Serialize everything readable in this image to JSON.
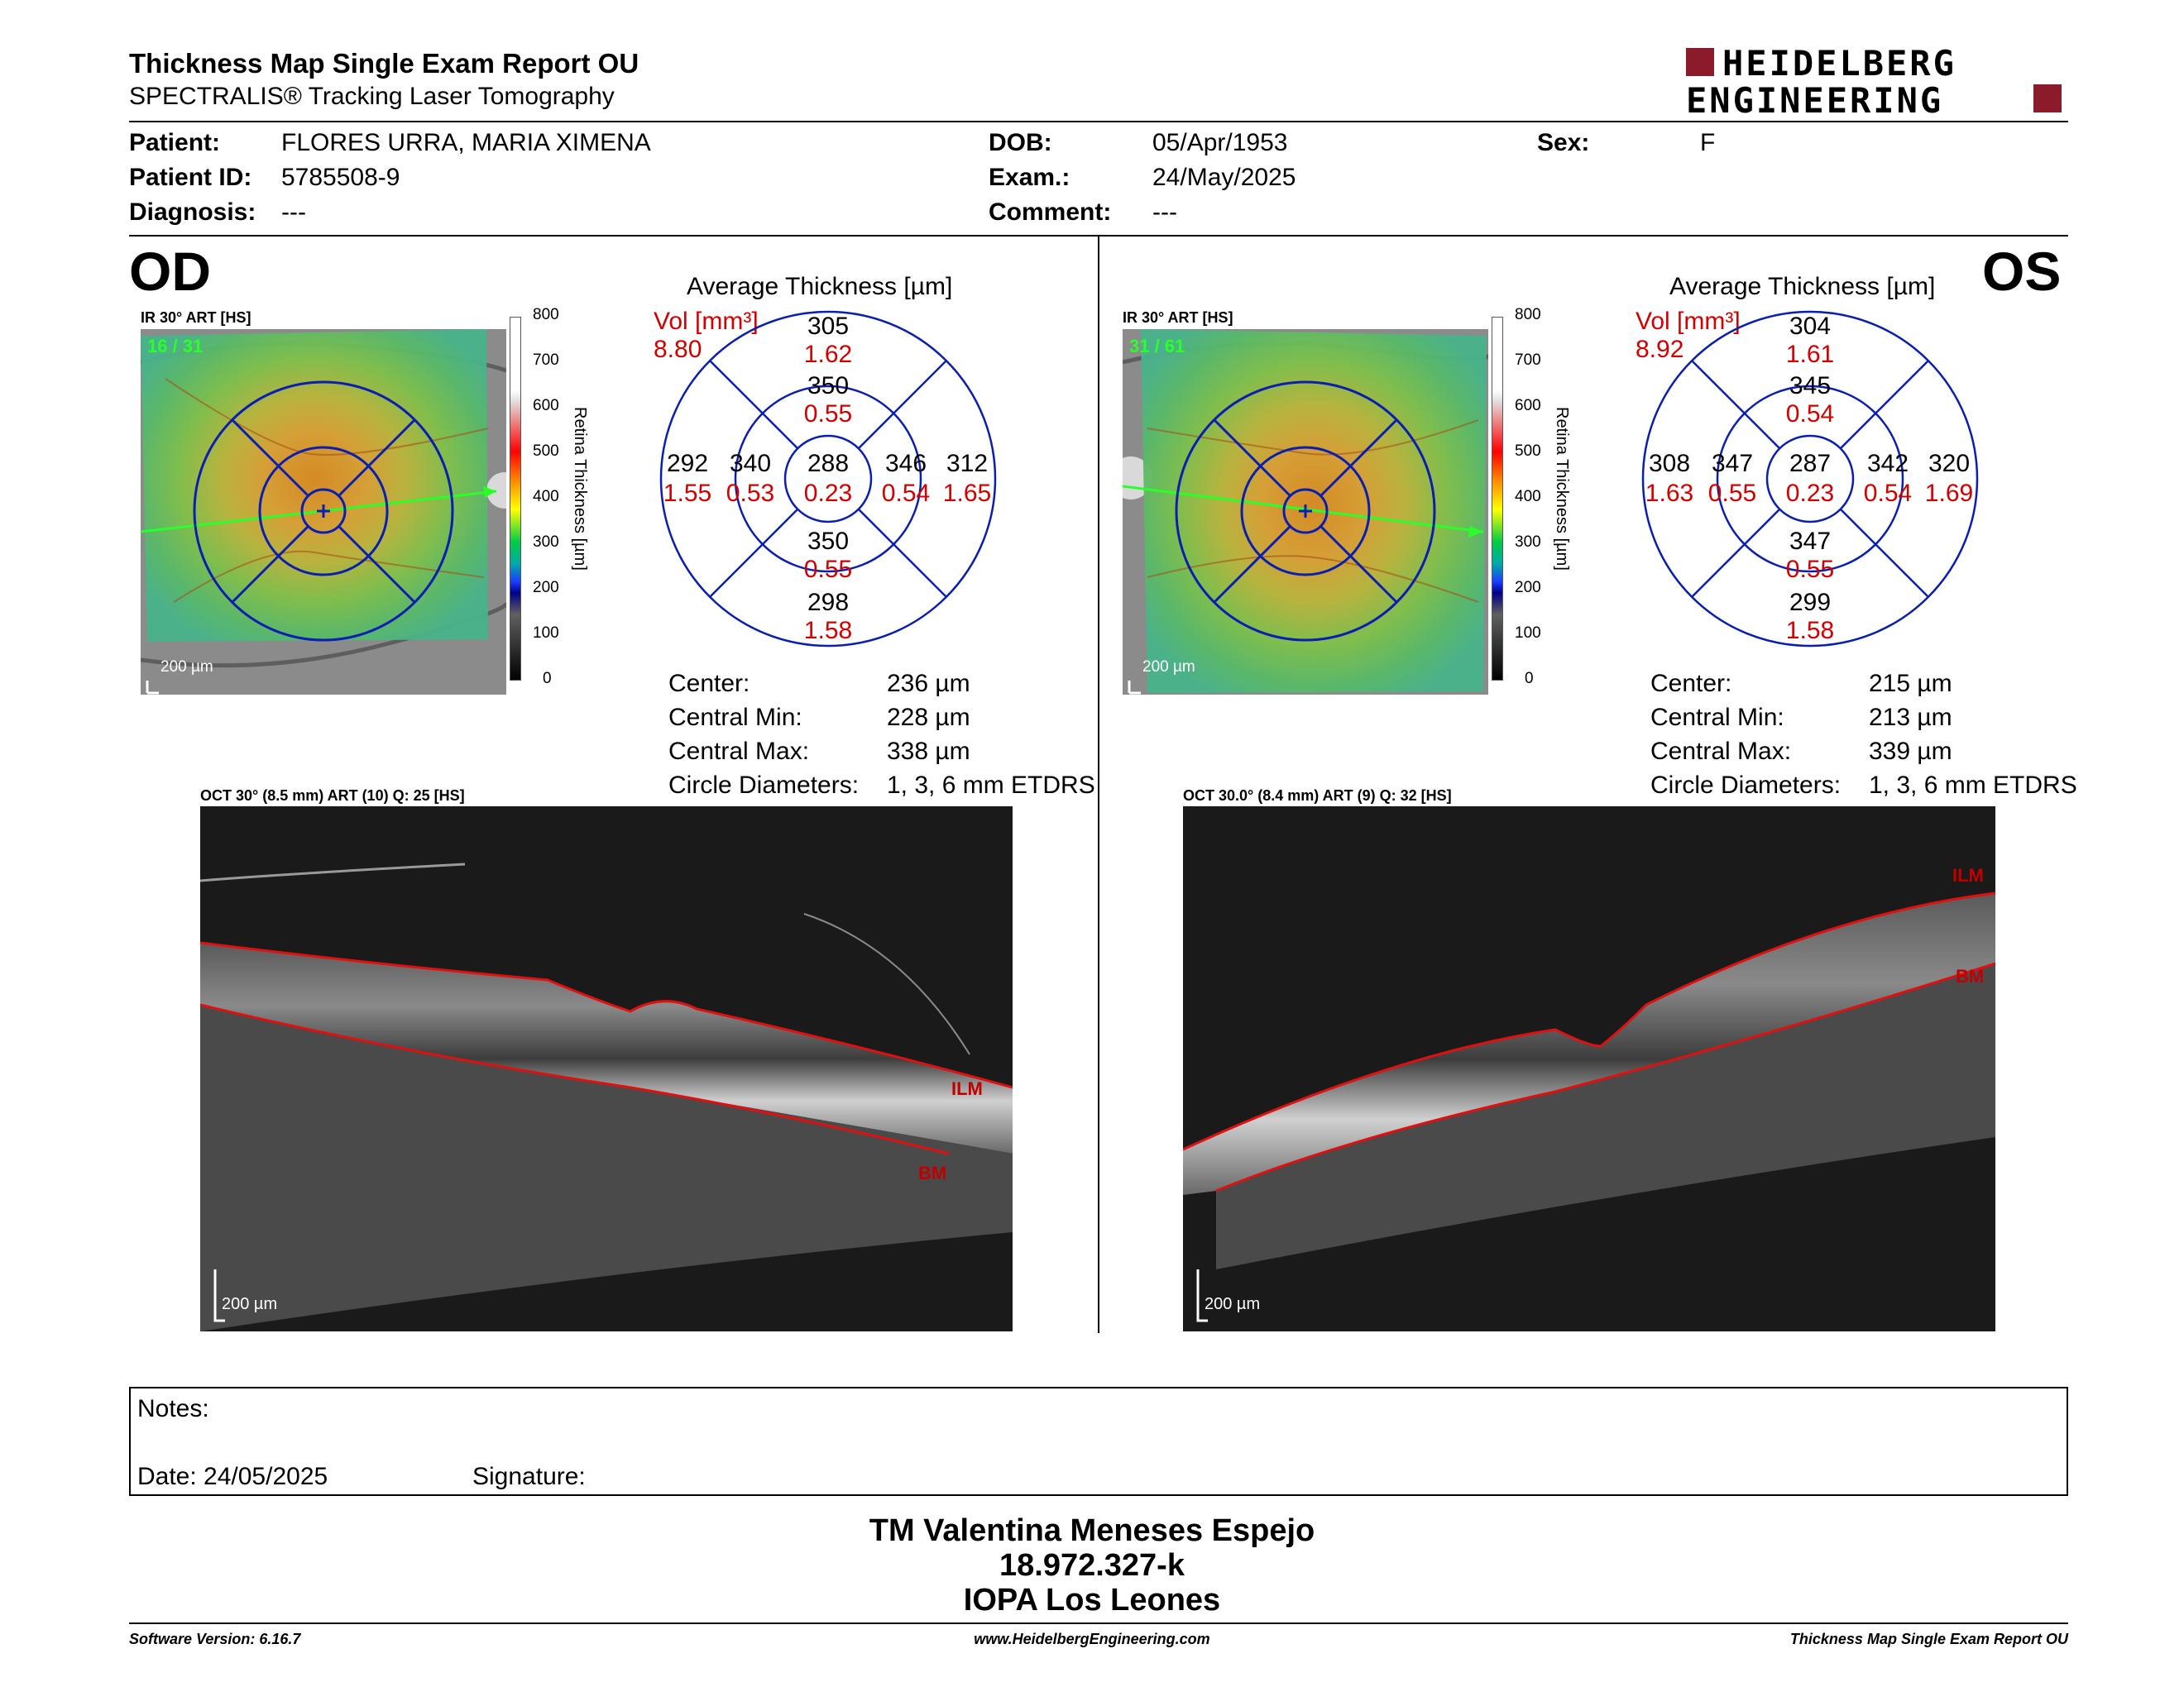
{
  "header": {
    "title": "Thickness Map Single Exam Report OU",
    "subtitle": "SPECTRALIS® Tracking Laser Tomography",
    "brand_line1": "HEIDELBERG",
    "brand_line2": "ENGINEERING",
    "brand_color": "#8b1a2b"
  },
  "patient": {
    "patient_label": "Patient:",
    "patient_value": "FLORES URRA, MARIA XIMENA",
    "id_label": "Patient ID:",
    "id_value": "5785508-9",
    "diagnosis_label": "Diagnosis:",
    "diagnosis_value": "---",
    "dob_label": "DOB:",
    "dob_value": "05/Apr/1953",
    "exam_label": "Exam.:",
    "exam_value": "24/May/2025",
    "comment_label": "Comment:",
    "comment_value": "---",
    "sex_label": "Sex:",
    "sex_value": "F"
  },
  "od": {
    "eye": "OD",
    "fundus_label": "IR 30° ART [HS]",
    "fundus_counter": "16 / 31",
    "fundus_scale": "200 µm",
    "avg_title": "Average Thickness [µm]",
    "vol_label": "Vol [mm³]",
    "vol_value": "8.80",
    "grid": {
      "sup_out": "305",
      "sup_out_vol": "1.62",
      "sup_in": "350",
      "sup_in_vol": "0.55",
      "temp_out": "292",
      "temp_out_vol": "1.55",
      "temp_in": "340",
      "temp_in_vol": "0.53",
      "center": "288",
      "center_vol": "0.23",
      "nas_in": "346",
      "nas_in_vol": "0.54",
      "nas_out": "312",
      "nas_out_vol": "1.65",
      "inf_in": "350",
      "inf_in_vol": "0.55",
      "inf_out": "298",
      "inf_out_vol": "1.58"
    },
    "stats": {
      "center_label": "Center:",
      "center_value": "236 µm",
      "min_label": "Central Min:",
      "min_value": "228 µm",
      "max_label": "Central Max:",
      "max_value": "338 µm",
      "circ_label": "Circle Diameters:",
      "circ_value": "1, 3, 6 mm ETDRS"
    },
    "oct_label": "OCT 30° (8.5 mm) ART (10) Q: 25 [HS]",
    "oct_scale": "200 µm",
    "ilm": "ILM",
    "bm": "BM"
  },
  "os": {
    "eye": "OS",
    "fundus_label": "IR 30° ART [HS]",
    "fundus_counter": "31 / 61",
    "fundus_scale": "200 µm",
    "avg_title": "Average Thickness [µm]",
    "vol_label": "Vol [mm³]",
    "vol_value": "8.92",
    "grid": {
      "sup_out": "304",
      "sup_out_vol": "1.61",
      "sup_in": "345",
      "sup_in_vol": "0.54",
      "temp_out": "308",
      "temp_out_vol": "1.63",
      "temp_in": "347",
      "temp_in_vol": "0.55",
      "center": "287",
      "center_vol": "0.23",
      "nas_in": "342",
      "nas_in_vol": "0.54",
      "nas_out": "320",
      "nas_out_vol": "1.69",
      "inf_in": "347",
      "inf_in_vol": "0.55",
      "inf_out": "299",
      "inf_out_vol": "1.58"
    },
    "stats": {
      "center_label": "Center:",
      "center_value": "215 µm",
      "min_label": "Central Min:",
      "min_value": "213 µm",
      "max_label": "Central Max:",
      "max_value": "339 µm",
      "circ_label": "Circle Diameters:",
      "circ_value": "1, 3, 6 mm ETDRS"
    },
    "oct_label": "OCT 30.0° (8.4 mm) ART (9) Q: 32 [HS]",
    "oct_scale": "200 µm",
    "ilm": "ILM",
    "bm": "BM"
  },
  "colorbar": {
    "ticks": [
      "800",
      "700",
      "600",
      "500",
      "400",
      "300",
      "200",
      "100",
      "0"
    ],
    "title": "Retina Thickness [µm]"
  },
  "notes": {
    "notes_label": "Notes:",
    "date_label": "Date: 24/05/2025",
    "signature_label": "Signature:"
  },
  "signer": {
    "name": "TM Valentina Meneses Espejo",
    "rut": "18.972.327-k",
    "institution": "IOPA Los Leones"
  },
  "footer": {
    "software": "Software Version: 6.16.7",
    "website": "www.HeidelbergEngineering.com",
    "report": "Thickness Map Single Exam Report OU"
  }
}
